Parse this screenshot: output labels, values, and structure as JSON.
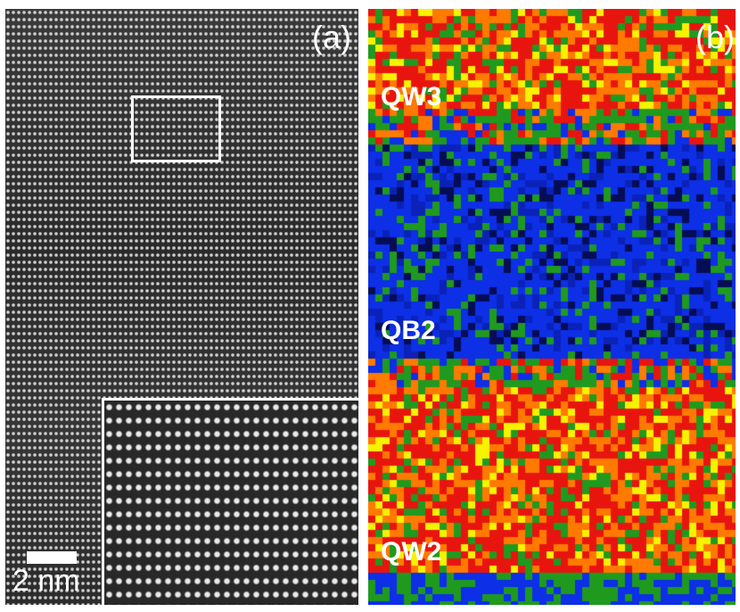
{
  "figure": {
    "panel_a": {
      "label": "(a)",
      "scale_bar_label": "2 nm"
    },
    "panel_b": {
      "label": "(b)",
      "regions": [
        {
          "label": "QW3"
        },
        {
          "label": "QB2"
        },
        {
          "label": "QW2"
        }
      ]
    },
    "colors": {
      "well_red": "#e8150f",
      "well_orange": "#ff7a00",
      "well_yellow": "#f6f200",
      "barrier_blue": "#0d2fe6",
      "interface_green": "#1f9a1f"
    }
  }
}
